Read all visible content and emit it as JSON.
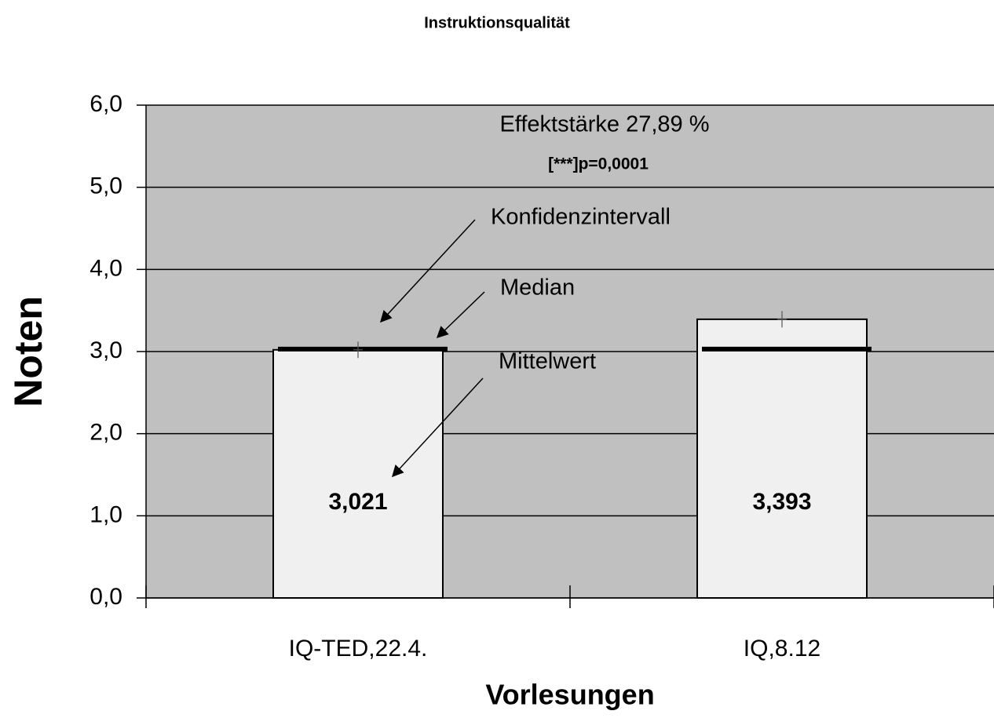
{
  "chart_data": {
    "type": "bar",
    "title": "Instruktionsqualität",
    "x_label": "Vorlesungen",
    "y_label": "Noten",
    "categories": [
      "IQ-TED,22.4.",
      "IQ,8.12"
    ],
    "values": [
      3.021,
      3.393
    ],
    "value_labels": [
      "3,021",
      "3,393"
    ],
    "medians": [
      3.03,
      3.03
    ],
    "errors": [
      0.1,
      0.1
    ],
    "color": "#f0f0f0",
    "background": "#c0c0c0",
    "ylim": [
      0,
      6
    ],
    "yticks": [
      {
        "value": 0,
        "label": "0,0"
      },
      {
        "value": 1,
        "label": "1,0"
      },
      {
        "value": 2,
        "label": "2,0"
      },
      {
        "value": 3,
        "label": "3,0"
      },
      {
        "value": 4,
        "label": "4,0"
      },
      {
        "value": 5,
        "label": "5,0"
      },
      {
        "value": 6,
        "label": "6,0"
      }
    ],
    "grid": true,
    "annotations": [
      "Effektstärke 27,89 %",
      "[***]p=0,0001",
      "Konfidenzintervall",
      "Median",
      "Mittelwert"
    ]
  }
}
